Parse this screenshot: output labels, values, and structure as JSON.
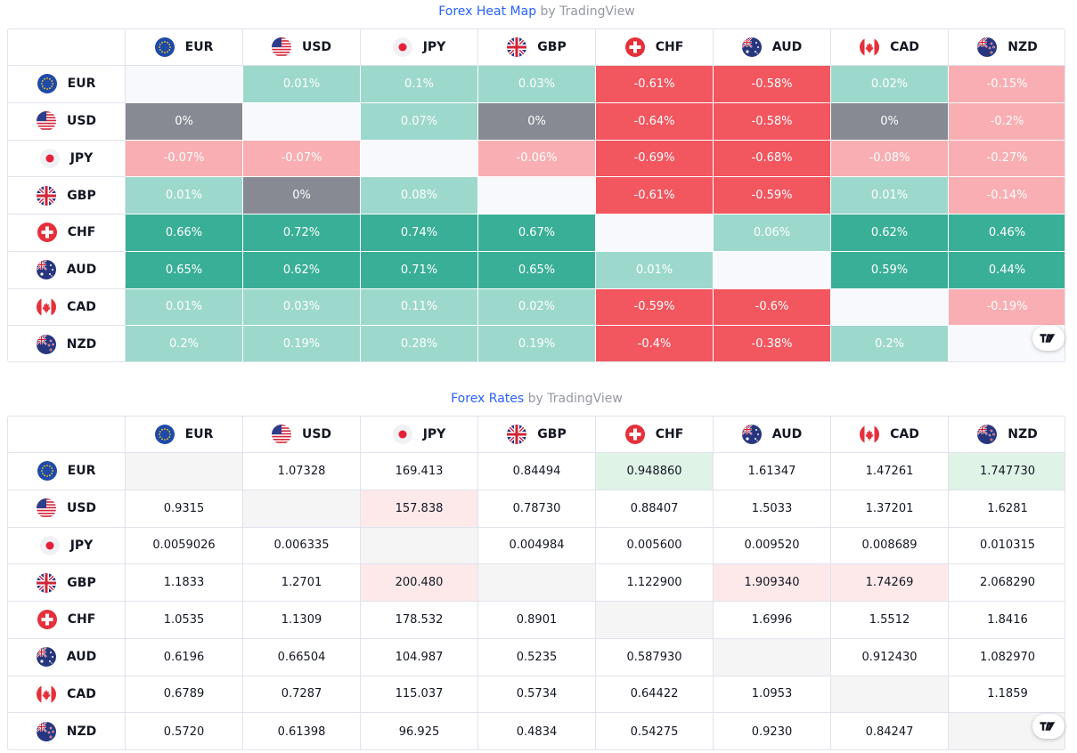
{
  "heatmap": {
    "title_link": "Forex Heat Map",
    "title_by": "by TradingView",
    "currencies": [
      {
        "code": "EUR",
        "flag": "eu-flag-icon"
      },
      {
        "code": "USD",
        "flag": "us-flag-icon"
      },
      {
        "code": "JPY",
        "flag": "jp-flag-icon"
      },
      {
        "code": "GBP",
        "flag": "gb-flag-icon"
      },
      {
        "code": "CHF",
        "flag": "ch-flag-icon"
      },
      {
        "code": "AUD",
        "flag": "au-flag-icon"
      },
      {
        "code": "CAD",
        "flag": "ca-flag-icon"
      },
      {
        "code": "NZD",
        "flag": "nz-flag-icon"
      }
    ],
    "rows": [
      [
        "",
        "0.01%",
        "0.1%",
        "0.03%",
        "-0.61%",
        "-0.58%",
        "0.02%",
        "-0.15%"
      ],
      [
        "0%",
        "",
        "0.07%",
        "0%",
        "-0.64%",
        "-0.58%",
        "0%",
        "-0.2%"
      ],
      [
        "-0.07%",
        "-0.07%",
        "",
        "-0.06%",
        "-0.69%",
        "-0.68%",
        "-0.08%",
        "-0.27%"
      ],
      [
        "0.01%",
        "0%",
        "0.08%",
        "",
        "-0.61%",
        "-0.59%",
        "0.01%",
        "-0.14%"
      ],
      [
        "0.66%",
        "0.72%",
        "0.74%",
        "0.67%",
        "",
        "0.06%",
        "0.62%",
        "0.46%"
      ],
      [
        "0.65%",
        "0.62%",
        "0.71%",
        "0.65%",
        "0.01%",
        "",
        "0.59%",
        "0.44%"
      ],
      [
        "0.01%",
        "0.03%",
        "0.11%",
        "0.02%",
        "-0.59%",
        "-0.6%",
        "",
        "-0.19%"
      ],
      [
        "0.2%",
        "0.19%",
        "0.28%",
        "0.19%",
        "-0.4%",
        "-0.38%",
        "0.2%",
        ""
      ]
    ],
    "colors": {
      "strong_up": "#3aaf97",
      "up": "#9dd8cd",
      "zero": "#878a93",
      "down": "#f8aeb2",
      "strong_down": "#f2565f",
      "empty": "#f8f9fd"
    }
  },
  "rates": {
    "title_link": "Forex Rates",
    "title_by": "by TradingView",
    "currencies": [
      {
        "code": "EUR",
        "flag": "eu-flag-icon"
      },
      {
        "code": "USD",
        "flag": "us-flag-icon"
      },
      {
        "code": "JPY",
        "flag": "jp-flag-icon"
      },
      {
        "code": "GBP",
        "flag": "gb-flag-icon"
      },
      {
        "code": "CHF",
        "flag": "ch-flag-icon"
      },
      {
        "code": "AUD",
        "flag": "au-flag-icon"
      },
      {
        "code": "CAD",
        "flag": "ca-flag-icon"
      },
      {
        "code": "NZD",
        "flag": "nz-flag-icon"
      }
    ],
    "rows": [
      [
        "",
        "1.07328",
        "169.413",
        "0.84494",
        "0.948860",
        "1.61347",
        "1.47261",
        "1.747730"
      ],
      [
        "0.9315",
        "",
        "157.838",
        "0.78730",
        "0.88407",
        "1.5033",
        "1.37201",
        "1.6281"
      ],
      [
        "0.0059026",
        "0.006335",
        "",
        "0.004984",
        "0.005600",
        "0.009520",
        "0.008689",
        "0.010315"
      ],
      [
        "1.1833",
        "1.2701",
        "200.480",
        "",
        "1.122900",
        "1.909340",
        "1.74269",
        "2.068290"
      ],
      [
        "1.0535",
        "1.1309",
        "178.532",
        "0.8901",
        "",
        "1.6996",
        "1.5512",
        "1.8416"
      ],
      [
        "0.6196",
        "0.66504",
        "104.987",
        "0.5235",
        "0.587930",
        "",
        "0.912430",
        "1.082970"
      ],
      [
        "0.6789",
        "0.7287",
        "115.037",
        "0.5734",
        "0.64422",
        "1.0953",
        "",
        "1.1859"
      ],
      [
        "0.5720",
        "0.61398",
        "96.925",
        "0.4834",
        "0.54275",
        "0.9230",
        "0.84247",
        ""
      ]
    ],
    "highlights": {
      "0-4": "up",
      "0-7": "up",
      "1-2": "down",
      "3-2": "down",
      "3-5": "down",
      "3-6": "down"
    },
    "colors": {
      "up": "#dff3e6",
      "down": "#fde9ea",
      "empty": "#f5f5f5",
      "normal": "#ffffff"
    }
  },
  "badge_icon": "tradingview-logo-icon"
}
